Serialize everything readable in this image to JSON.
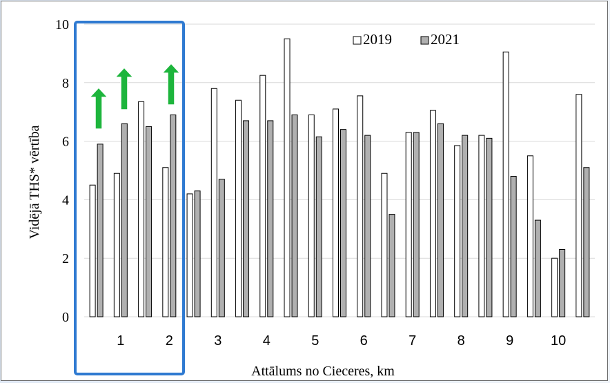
{
  "chart_data": {
    "type": "bar",
    "ylabel": "Vidējā THS* vērtība",
    "xlabel": "Attālums no Cieceres, km",
    "ylim": [
      0,
      10
    ],
    "yticks": [
      0,
      2,
      4,
      6,
      8,
      10
    ],
    "xtick_labels": [
      "1",
      "2",
      "3",
      "4",
      "5",
      "6",
      "7",
      "8",
      "9",
      "10"
    ],
    "grid": true,
    "legend_position": "top-right",
    "series": [
      {
        "name": "2019",
        "color": "#ffffff",
        "values": [
          4.5,
          4.9,
          7.35,
          5.1,
          4.2,
          7.8,
          7.4,
          8.25,
          9.5,
          6.9,
          7.1,
          7.55,
          4.9,
          6.3,
          7.05,
          5.85,
          6.2,
          9.05,
          5.5,
          2.0,
          7.6
        ]
      },
      {
        "name": "2021",
        "color": "#b0b0b0",
        "values": [
          5.9,
          6.6,
          6.5,
          6.9,
          4.3,
          4.7,
          6.7,
          6.7,
          6.9,
          6.15,
          6.4,
          6.2,
          3.5,
          6.3,
          6.6,
          6.2,
          6.1,
          4.8,
          3.3,
          2.3,
          5.1
        ]
      }
    ],
    "annotations": {
      "highlight_box_color": "#2f7ad1",
      "arrow_color": "#1db53c"
    }
  }
}
